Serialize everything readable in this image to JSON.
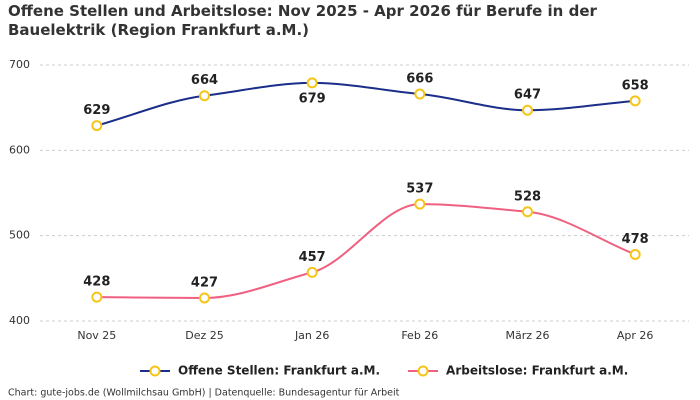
{
  "chart_data": {
    "type": "line",
    "title": "Offene Stellen und Arbeitslose: Nov 2025 - Apr 2026 für Berufe in der Bauelektrik (Region Frankfurt a.M.)",
    "categories": [
      "Nov 25",
      "Dez 25",
      "Jan 26",
      "Feb 26",
      "März 26",
      "Apr 26"
    ],
    "series": [
      {
        "name": "Offene Stellen: Frankfurt a.M.",
        "color": "#1a2e8a",
        "values": [
          629,
          664,
          679,
          666,
          647,
          658
        ]
      },
      {
        "name": "Arbeitslose: Frankfurt a.M.",
        "color": "#f06080",
        "values": [
          428,
          427,
          457,
          537,
          528,
          478
        ]
      }
    ],
    "marker_color": "#f5c518",
    "ylim": [
      400,
      700
    ],
    "yticks": [
      400,
      500,
      600,
      700
    ],
    "grid": true,
    "legend": "bottom",
    "footer": "Chart: gute-jobs.de (Wollmilchsau GmbH) | Datenquelle: Bundesagentur für Arbeit"
  }
}
